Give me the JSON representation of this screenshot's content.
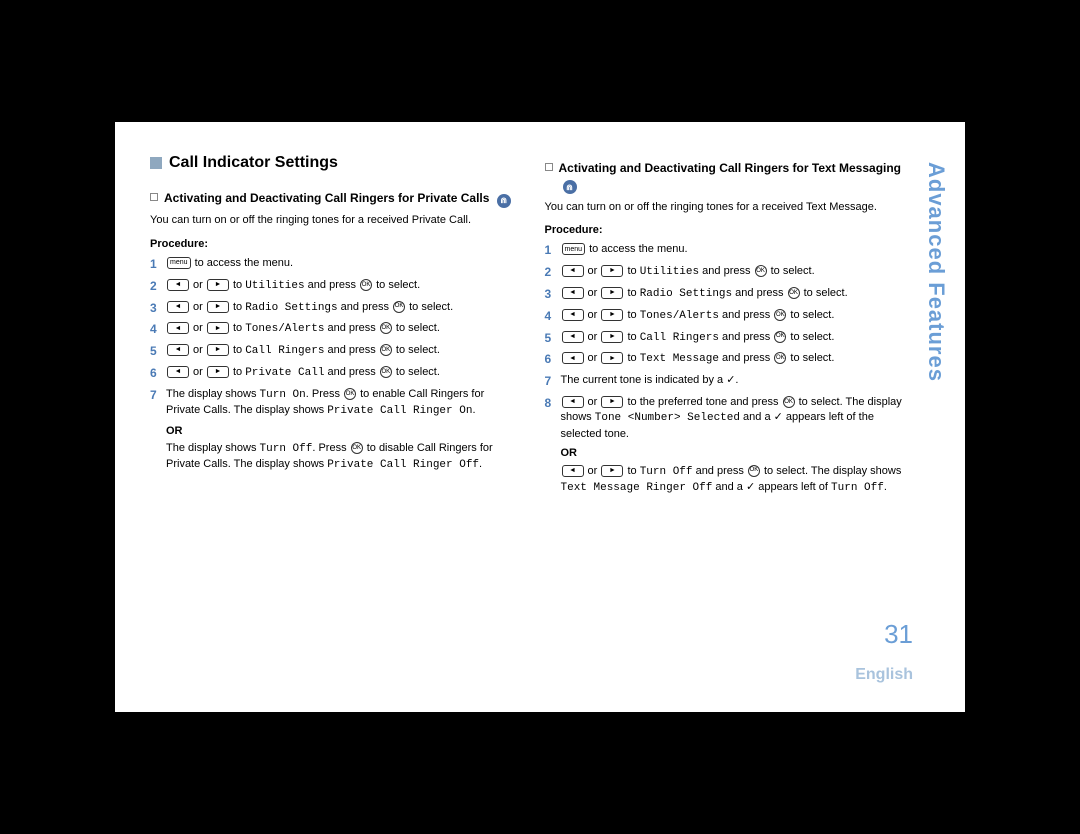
{
  "colors": {
    "background": "#000000",
    "page_bg": "#ffffff",
    "accent": "#6b9ed6",
    "step_num": "#4a7ab5",
    "square": "#8fa8bf",
    "badge_bg": "#4a6fa5",
    "lang_color": "#a9c3dd"
  },
  "sidebar": "Advanced Features",
  "page_number": "31",
  "language": "English",
  "section_title": "Call Indicator Settings",
  "procedure_label": "Procedure:",
  "or_label": "OR",
  "icons": {
    "menu": "menu",
    "left": "◄",
    "right": "►",
    "ok": "OK",
    "check": "✓"
  },
  "left": {
    "heading": "Activating and Deactivating Call Ringers for Private Calls",
    "badge": "⋒",
    "intro": "You can turn on or off the ringing tones for a received Private Call.",
    "steps": [
      {
        "n": "1",
        "post": " to access the menu."
      },
      {
        "n": "2",
        "mid": " to ",
        "target": "Utilities",
        "post2": " and press ",
        "end": " to select."
      },
      {
        "n": "3",
        "mid": " to ",
        "target": "Radio Settings",
        "post2": " and press ",
        "end": " to select."
      },
      {
        "n": "4",
        "mid": " to ",
        "target": "Tones/Alerts",
        "post2": " and press ",
        "end": " to select."
      },
      {
        "n": "5",
        "mid": " to ",
        "target": "Call Ringers",
        "post2": " and press ",
        "end": " to select."
      },
      {
        "n": "6",
        "mid": " to ",
        "target": "Private Call",
        "post2": " and press ",
        "end": " to select."
      }
    ],
    "step7_a": "The display shows ",
    "step7_turn_on": "Turn On",
    "step7_b": ". Press ",
    "step7_c": " to enable Call Ringers for Private Calls. The display shows ",
    "step7_on_msg": "Private Call Ringer On",
    "step7_d": ".",
    "or_a": "The display shows ",
    "or_turn_off": "Turn Off",
    "or_b": ". Press ",
    "or_c": " to disable Call Ringers for Private Calls. The display shows ",
    "or_off_msg": "Private Call Ringer Off",
    "or_d": "."
  },
  "right": {
    "heading": "Activating and Deactivating Call Ringers for Text Messaging",
    "badge": "⋒",
    "intro": "You can turn on or off the ringing tones for a received Text Message.",
    "steps": [
      {
        "n": "1",
        "post": " to access the menu."
      },
      {
        "n": "2",
        "mid": " to ",
        "target": "Utilities",
        "post2": " and press ",
        "end": " to select."
      },
      {
        "n": "3",
        "mid": " to ",
        "target": "Radio Settings",
        "post2": " and press ",
        "end": " to select."
      },
      {
        "n": "4",
        "mid": " to ",
        "target": "Tones/Alerts",
        "post2": " and press ",
        "end": " to select."
      },
      {
        "n": "5",
        "mid": " to ",
        "target": "Call Ringers",
        "post2": " and press ",
        "end": " to select."
      },
      {
        "n": "6",
        "mid": " to ",
        "target": "Text Message",
        "post2": " and press ",
        "end": " to select."
      }
    ],
    "step7": "The current tone is indicated by a ✓.",
    "step8_a": " to the preferred tone and press ",
    "step8_b": " to select. The display shows ",
    "step8_tone": "Tone <Number> Selected",
    "step8_c": " and a ✓ appears left of the selected tone.",
    "or_a": " to ",
    "or_turn_off": "Turn Off",
    "or_b": " and press ",
    "or_c": " to select. The display shows ",
    "or_off_msg": "Text Message Ringer Off",
    "or_d": " and a ✓ appears left of ",
    "or_turn_off2": "Turn Off",
    "or_e": "."
  }
}
